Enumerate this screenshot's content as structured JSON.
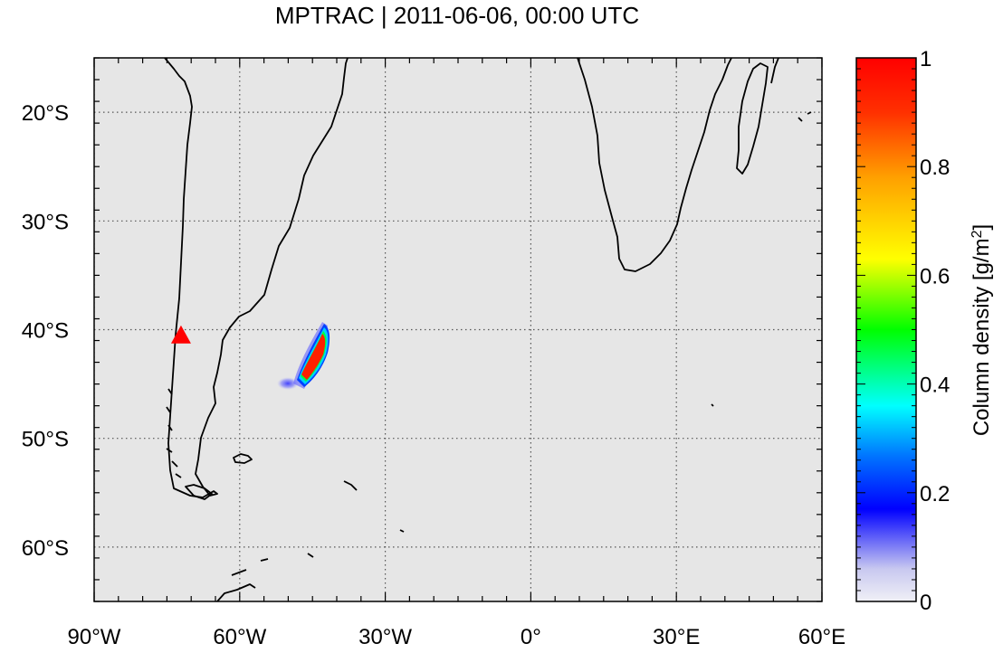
{
  "title": "MPTRAC | 2011-06-06, 00:00 UTC",
  "map": {
    "lon_range": [
      -90,
      60
    ],
    "lat_range": [
      -65,
      -15
    ],
    "background_color": "#e6e6e6",
    "grid": "dotted",
    "coastline_color": "#000000",
    "lon_ticks": [
      {
        "value": -90,
        "label": "90°W"
      },
      {
        "value": -60,
        "label": "60°W"
      },
      {
        "value": -30,
        "label": "30°W"
      },
      {
        "value": 0,
        "label": "0°"
      },
      {
        "value": 30,
        "label": "30°E"
      },
      {
        "value": 60,
        "label": "60°E"
      }
    ],
    "lat_ticks": [
      {
        "value": -20,
        "label": "20°S"
      },
      {
        "value": -30,
        "label": "30°S"
      },
      {
        "value": -40,
        "label": "40°S"
      },
      {
        "value": -50,
        "label": "50°S"
      },
      {
        "value": -60,
        "label": "60°S"
      }
    ],
    "volcano_marker": {
      "lon": -72.1,
      "lat": -40.6,
      "color": "#ff0000",
      "icon": "triangle-icon"
    },
    "plume": {
      "center_lon": -45.5,
      "center_lat": -42.5,
      "peak_value": 1.0
    }
  },
  "colorbar": {
    "label": "Column density [g/m",
    "label_sup": "2",
    "label_end": "]",
    "range": [
      0,
      1
    ],
    "ticks": [
      {
        "value": 0,
        "label": "0"
      },
      {
        "value": 0.2,
        "label": "0.2"
      },
      {
        "value": 0.4,
        "label": "0.4"
      },
      {
        "value": 0.6,
        "label": "0.6"
      },
      {
        "value": 0.8,
        "label": "0.8"
      },
      {
        "value": 1,
        "label": "1"
      }
    ],
    "colors": [
      "#ffffff",
      "#0000ff",
      "#00ffff",
      "#00ff00",
      "#ffff00",
      "#ff8000",
      "#ff0000"
    ]
  }
}
